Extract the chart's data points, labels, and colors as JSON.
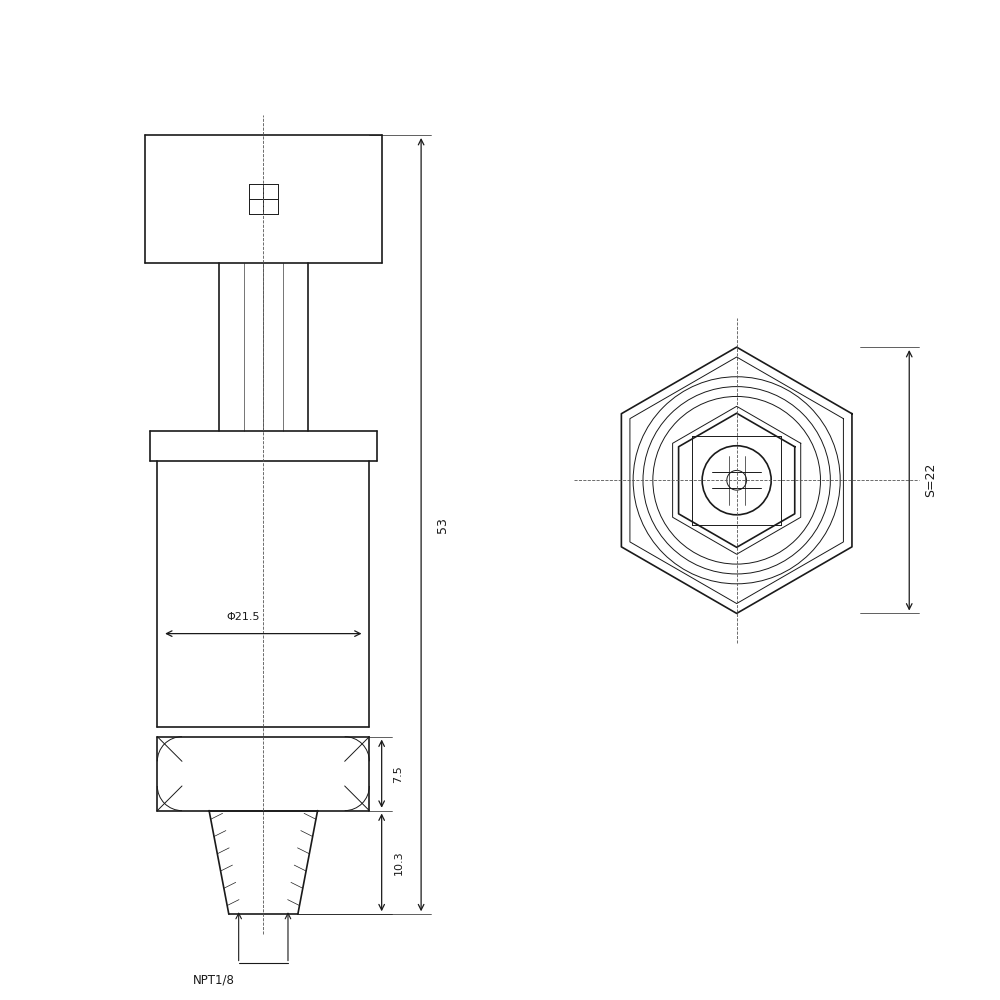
{
  "bg_color": "#ffffff",
  "line_color": "#1a1a1a",
  "dim_color": "#1a1a1a",
  "line_width": 1.2,
  "thin_line": 0.7,
  "center_line_color": "#555555",
  "annotations": {
    "phi": "Φ21.5",
    "dim53": "53",
    "dim75": "7.5",
    "dim103": "10.3",
    "npt": "NPT1/8",
    "s22": "S=22"
  }
}
